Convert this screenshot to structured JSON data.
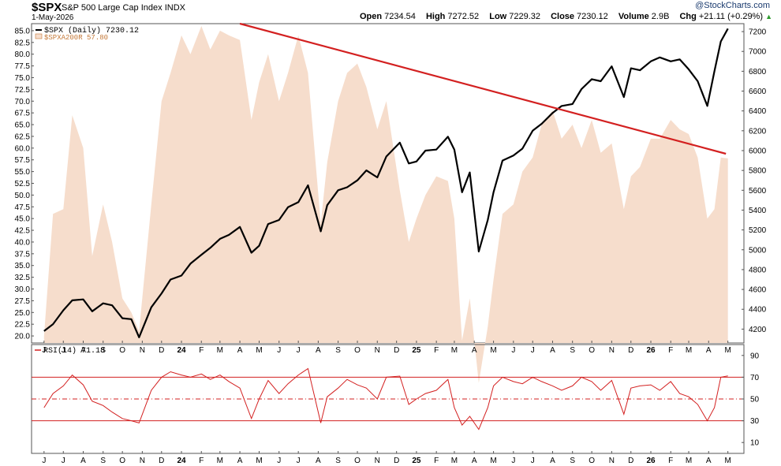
{
  "header": {
    "ticker": "$SPX",
    "name": "S&P 500 Large Cap Index",
    "exchange": "INDX",
    "date": "1-May-2026",
    "open_label": "Open",
    "open": "7234.54",
    "high_label": "High",
    "high": "7272.52",
    "low_label": "Low",
    "low": "7229.32",
    "close_label": "Close",
    "close": "7230.12",
    "volume_label": "Volume",
    "volume": "2.9B",
    "chg_label": "Chg",
    "chg": "+21.11 (+0.29%)",
    "brand": "@StockCharts.com"
  },
  "legend": {
    "spx": "$SPX (Daily) 7230.12",
    "spxa": "$SPXA200R 57.80",
    "rsi": "RSI(14) 71.18"
  },
  "colors": {
    "price": "#000000",
    "breadth_fill": "#f6ddcc",
    "trendline": "#d32020",
    "rsi": "#d32020",
    "legend_spxa": "#c57a3a"
  },
  "chart_data": [
    {
      "type": "line",
      "title": "$SPX S&P 500 Large Cap Index",
      "series": [
        {
          "name": "$SPX (Daily)",
          "x": [
            "2023-06-01",
            "2023-06-15",
            "2023-07-01",
            "2023-07-15",
            "2023-08-01",
            "2023-08-15",
            "2023-09-01",
            "2023-09-15",
            "2023-10-01",
            "2023-10-15",
            "2023-10-27",
            "2023-11-15",
            "2023-12-01",
            "2023-12-15",
            "2024-01-01",
            "2024-01-15",
            "2024-02-01",
            "2024-02-15",
            "2024-03-01",
            "2024-03-15",
            "2024-04-01",
            "2024-04-19",
            "2024-05-01",
            "2024-05-15",
            "2024-06-01",
            "2024-06-15",
            "2024-07-01",
            "2024-07-16",
            "2024-08-05",
            "2024-08-15",
            "2024-09-01",
            "2024-09-15",
            "2024-10-01",
            "2024-10-15",
            "2024-11-01",
            "2024-11-15",
            "2024-12-06",
            "2024-12-20",
            "2025-01-01",
            "2025-01-15",
            "2025-02-01",
            "2025-02-19",
            "2025-03-01",
            "2025-03-13",
            "2025-03-25",
            "2025-04-08",
            "2025-04-22",
            "2025-05-01",
            "2025-05-15",
            "2025-06-01",
            "2025-06-15",
            "2025-07-01",
            "2025-07-15",
            "2025-08-01",
            "2025-08-15",
            "2025-09-01",
            "2025-09-15",
            "2025-10-01",
            "2025-10-15",
            "2025-11-01",
            "2025-11-20",
            "2025-12-01",
            "2025-12-15",
            "2026-01-01",
            "2026-01-15",
            "2026-02-01",
            "2026-02-15",
            "2026-03-01",
            "2026-03-15",
            "2026-03-30",
            "2026-04-10",
            "2026-04-20",
            "2026-05-01"
          ],
          "values": [
            4180,
            4250,
            4390,
            4490,
            4500,
            4380,
            4460,
            4440,
            4310,
            4300,
            4117,
            4420,
            4560,
            4700,
            4740,
            4860,
            4950,
            5020,
            5110,
            5150,
            5230,
            4970,
            5040,
            5260,
            5300,
            5430,
            5480,
            5650,
            5186,
            5450,
            5600,
            5630,
            5700,
            5800,
            5730,
            5940,
            6080,
            5870,
            5890,
            6000,
            6010,
            6140,
            6010,
            5580,
            5780,
            4982,
            5300,
            5580,
            5900,
            5950,
            6020,
            6200,
            6270,
            6380,
            6450,
            6470,
            6620,
            6720,
            6700,
            6850,
            6540,
            6830,
            6810,
            6900,
            6940,
            6900,
            6920,
            6820,
            6700,
            6450,
            6800,
            7100,
            7230
          ]
        },
        {
          "name": "$SPXA200R",
          "values": [
            20,
            46,
            47,
            67,
            60,
            37,
            48,
            40,
            28,
            25,
            21,
            48,
            70,
            76,
            84,
            80,
            86,
            81,
            85,
            84,
            83,
            66,
            74,
            80,
            70,
            76,
            84,
            76,
            44,
            57,
            70,
            76,
            78,
            73,
            64,
            70,
            51,
            40,
            45,
            50,
            54,
            53,
            45,
            19,
            28,
            10,
            22,
            32,
            46,
            48,
            55,
            58,
            65,
            68,
            62,
            65,
            60,
            66,
            59,
            61,
            47,
            54,
            56,
            62,
            62,
            66,
            64,
            63,
            58,
            45,
            47,
            58,
            57.8
          ]
        },
        {
          "name": "Trendline",
          "x": [
            "2024-04-01",
            "2026-04-28"
          ],
          "values": [
            86.5,
            58.8
          ]
        }
      ],
      "xticks": [
        "J",
        "J",
        "A",
        "S",
        "O",
        "N",
        "D",
        "24",
        "F",
        "M",
        "A",
        "M",
        "J",
        "J",
        "A",
        "S",
        "O",
        "N",
        "D",
        "25",
        "F",
        "M",
        "A",
        "M",
        "J",
        "J",
        "A",
        "S",
        "O",
        "N",
        "D",
        "26",
        "F",
        "M",
        "A",
        "M"
      ],
      "yticks_left": [
        "20.0",
        "22.5",
        "25.0",
        "27.5",
        "30.0",
        "32.5",
        "35.0",
        "37.5",
        "40.0",
        "42.5",
        "45.0",
        "47.5",
        "50.0",
        "52.5",
        "55.0",
        "57.5",
        "60.0",
        "62.5",
        "65.0",
        "67.5",
        "70.0",
        "72.5",
        "75.0",
        "77.5",
        "80.0",
        "82.5",
        "85.0"
      ],
      "yticks_right": [
        "4200",
        "4400",
        "4600",
        "4800",
        "5000",
        "5200",
        "5400",
        "5600",
        "5800",
        "6000",
        "6200",
        "6400",
        "6600",
        "6800",
        "7000",
        "7200"
      ],
      "ylim_left": [
        18.5,
        86.5
      ],
      "ylim_right": [
        4060,
        7280
      ],
      "grid": false
    },
    {
      "type": "line",
      "series": [
        {
          "name": "RSI(14)",
          "values": [
            42,
            55,
            62,
            72,
            63,
            48,
            44,
            38,
            32,
            30,
            28,
            58,
            70,
            75,
            72,
            70,
            73,
            68,
            72,
            66,
            60,
            32,
            50,
            67,
            55,
            64,
            72,
            78,
            28,
            52,
            60,
            68,
            63,
            60,
            50,
            70,
            71,
            45,
            50,
            55,
            58,
            68,
            42,
            26,
            34,
            22,
            42,
            62,
            70,
            66,
            64,
            70,
            66,
            62,
            58,
            62,
            70,
            66,
            58,
            67,
            36,
            60,
            62,
            63,
            58,
            66,
            55,
            52,
            45,
            30,
            42,
            70,
            71.18
          ]
        }
      ],
      "reference_lines": [
        30,
        50,
        70
      ],
      "yticks": [
        "10",
        "30",
        "50",
        "70",
        "90"
      ],
      "ylim": [
        0,
        100
      ],
      "xticks": [
        "J",
        "J",
        "A",
        "S",
        "O",
        "N",
        "D",
        "24",
        "F",
        "M",
        "A",
        "M",
        "J",
        "J",
        "A",
        "S",
        "O",
        "N",
        "D",
        "25",
        "F",
        "M",
        "A",
        "M",
        "J",
        "J",
        "A",
        "S",
        "O",
        "N",
        "D",
        "26",
        "F",
        "M",
        "A",
        "M"
      ]
    }
  ]
}
